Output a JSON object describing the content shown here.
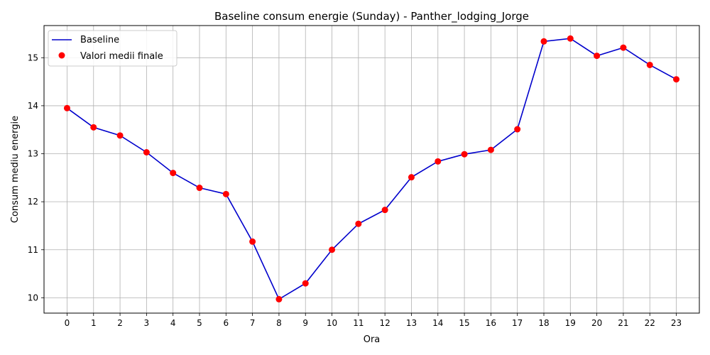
{
  "chart_data": {
    "type": "line",
    "title": "Baseline consum energie (Sunday) - Panther_lodging_Jorge",
    "xlabel": "Ora",
    "ylabel": "Consum mediu energie",
    "x": [
      0,
      1,
      2,
      3,
      4,
      5,
      6,
      7,
      8,
      9,
      10,
      11,
      12,
      13,
      14,
      15,
      16,
      17,
      18,
      19,
      20,
      21,
      22,
      23
    ],
    "x_tick_labels": [
      "0",
      "1",
      "2",
      "3",
      "4",
      "5",
      "6",
      "7",
      "8",
      "9",
      "10",
      "11",
      "12",
      "13",
      "14",
      "15",
      "16",
      "17",
      "18",
      "19",
      "20",
      "21",
      "22",
      "23"
    ],
    "xlim": [
      -0.87,
      23.87
    ],
    "ylim": [
      9.68,
      15.67
    ],
    "y_ticks": [
      10,
      11,
      12,
      13,
      14,
      15
    ],
    "y_tick_labels": [
      "10",
      "11",
      "12",
      "13",
      "14",
      "15"
    ],
    "grid": true,
    "legend_position": "top-left",
    "series": [
      {
        "name": "Baseline",
        "kind": "line",
        "color": "#0000cc",
        "values": [
          13.95,
          13.55,
          13.38,
          13.03,
          12.6,
          12.29,
          12.16,
          11.17,
          9.97,
          10.3,
          11.0,
          11.54,
          11.83,
          12.51,
          12.84,
          12.99,
          13.08,
          13.51,
          15.34,
          15.4,
          15.04,
          15.21,
          14.85,
          14.55
        ]
      },
      {
        "name": "Valori medii finale",
        "kind": "scatter",
        "color": "#ff0000",
        "values": [
          13.95,
          13.55,
          13.38,
          13.03,
          12.6,
          12.29,
          12.16,
          11.17,
          9.97,
          10.3,
          11.0,
          11.54,
          11.83,
          12.51,
          12.84,
          12.99,
          13.08,
          13.51,
          15.34,
          15.4,
          15.04,
          15.21,
          14.85,
          14.55
        ]
      }
    ]
  }
}
